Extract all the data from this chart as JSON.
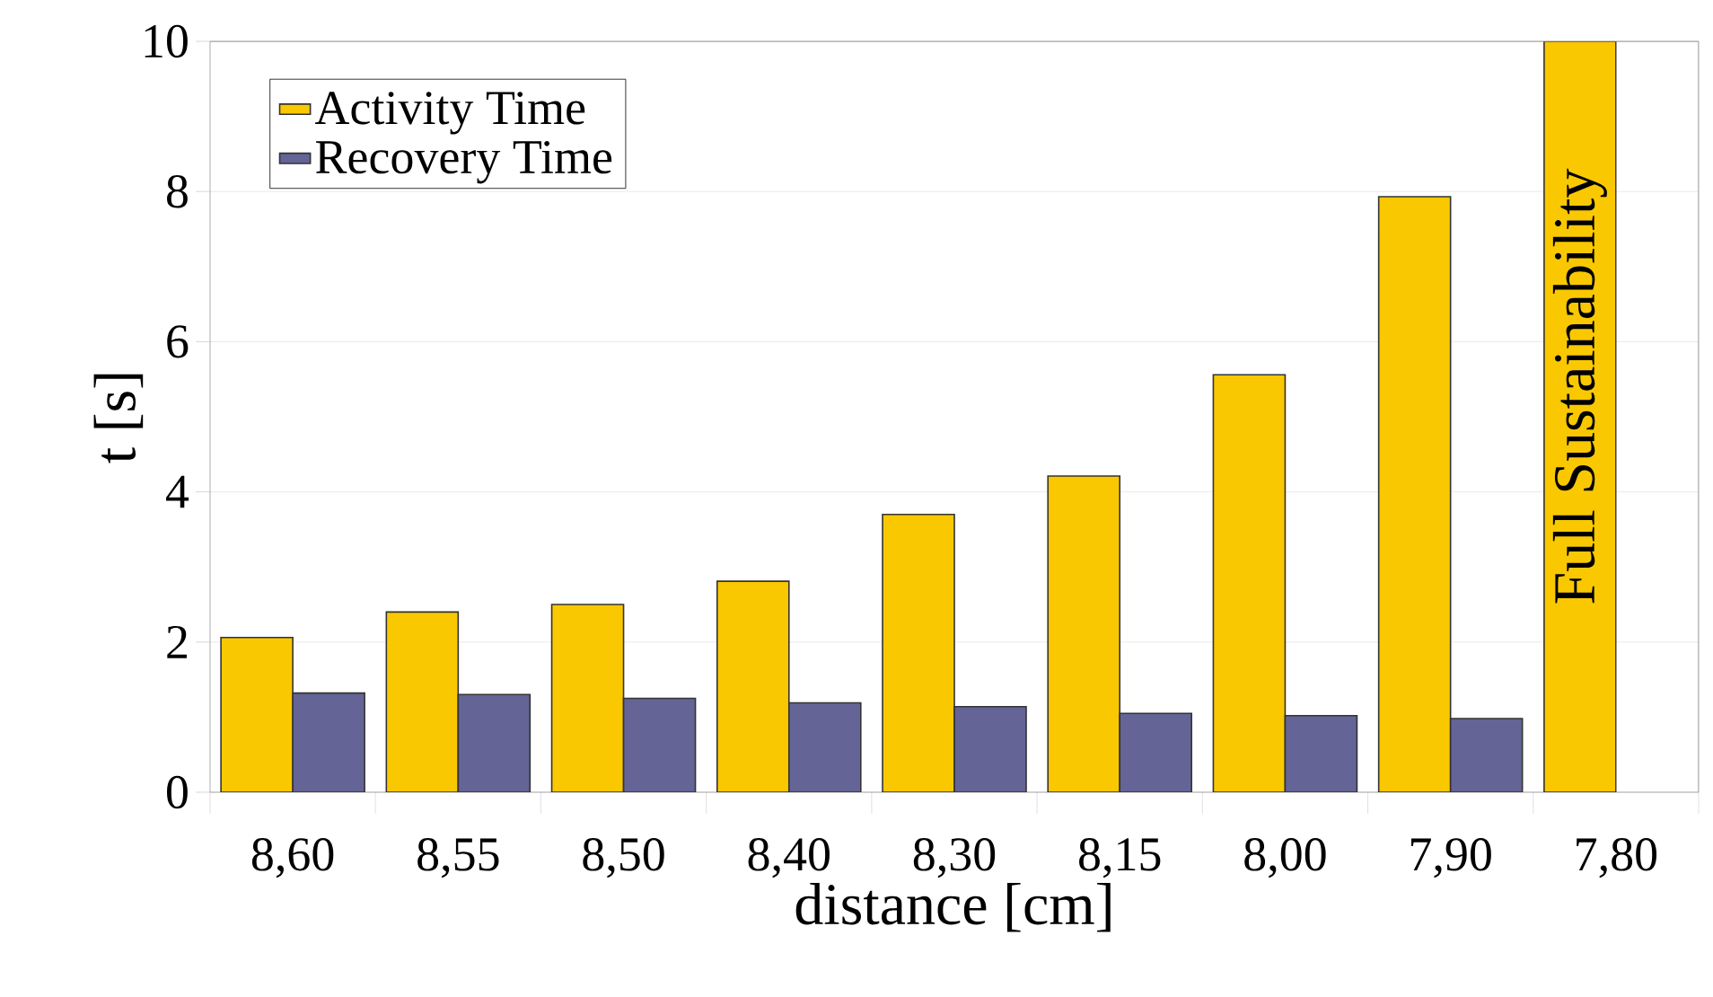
{
  "chart_data": {
    "type": "bar",
    "xlabel": "distance [cm]",
    "ylabel": "t [s]",
    "categories": [
      "8,60",
      "8,55",
      "8,50",
      "8,40",
      "8,30",
      "8,15",
      "8,00",
      "7,90",
      "7,80"
    ],
    "series": [
      {
        "name": "Activity Time",
        "color": "#f9c800",
        "values": [
          2.06,
          2.4,
          2.5,
          2.81,
          3.7,
          4.21,
          5.56,
          7.93,
          10
        ]
      },
      {
        "name": "Recovery Time",
        "color": "#646496",
        "values": [
          1.32,
          1.3,
          1.25,
          1.19,
          1.14,
          1.05,
          1.02,
          0.98,
          null
        ]
      }
    ],
    "ylim": [
      0,
      10
    ],
    "yticks": [
      0,
      2,
      4,
      6,
      8,
      10
    ],
    "grid": "y",
    "legend": "top left",
    "annotations": [
      {
        "text": "Full Sustainability",
        "x": "7,80",
        "y": 5.4
      }
    ]
  }
}
